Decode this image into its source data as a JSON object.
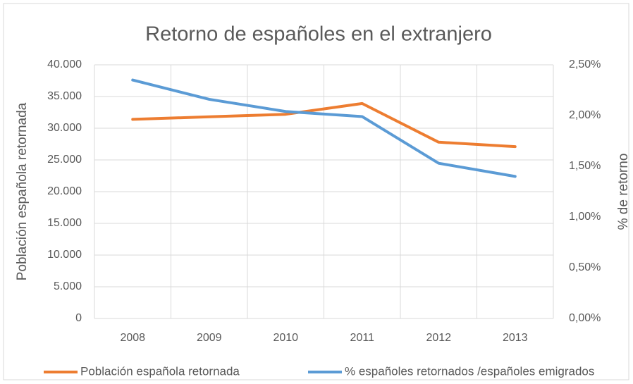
{
  "chart_data": {
    "type": "line",
    "title": "Retorno de españoles en el extranjero",
    "y_label": "Población española retornada",
    "y2_label": "% de retorno",
    "categories": [
      "2008",
      "2009",
      "2010",
      "2011",
      "2012",
      "2013"
    ],
    "series": [
      {
        "name": "Población española retornada",
        "color": "#ed7d31",
        "values": [
          31400,
          31800,
          32200,
          33900,
          27800,
          27100
        ]
      },
      {
        "name": "% españoles retornados /españoles emigrados",
        "color": "#5b9bd5",
        "axis": "y2",
        "values": [
          2.35,
          2.16,
          2.04,
          1.99,
          1.53,
          1.4
        ]
      }
    ],
    "ylim": [
      0,
      40000
    ],
    "yticks": [
      0,
      {
        "value": 5000,
        "label": "5.000"
      },
      {
        "value": 10000,
        "label": "10.000"
      },
      {
        "value": 15000,
        "label": "15.000"
      },
      {
        "value": 20000,
        "label": "20.000"
      },
      {
        "value": 25000,
        "label": "25.000"
      },
      {
        "value": 30000,
        "label": "30.000"
      },
      {
        "value": 35000,
        "label": "35.000"
      },
      {
        "value": 40000,
        "label": "40.000"
      }
    ],
    "y2lim": [
      0,
      2.5
    ],
    "y2ticks": [
      {
        "value": 0,
        "label": "0,00%"
      },
      {
        "value": 0.5,
        "label": "0,50%"
      },
      {
        "value": 1,
        "label": "1,00%"
      },
      {
        "value": 1.5,
        "label": "1,50%"
      },
      {
        "value": 2,
        "label": "2,00%"
      },
      {
        "value": 2.5,
        "label": "2,50%"
      }
    ],
    "grid": true,
    "legend": "bottom"
  }
}
